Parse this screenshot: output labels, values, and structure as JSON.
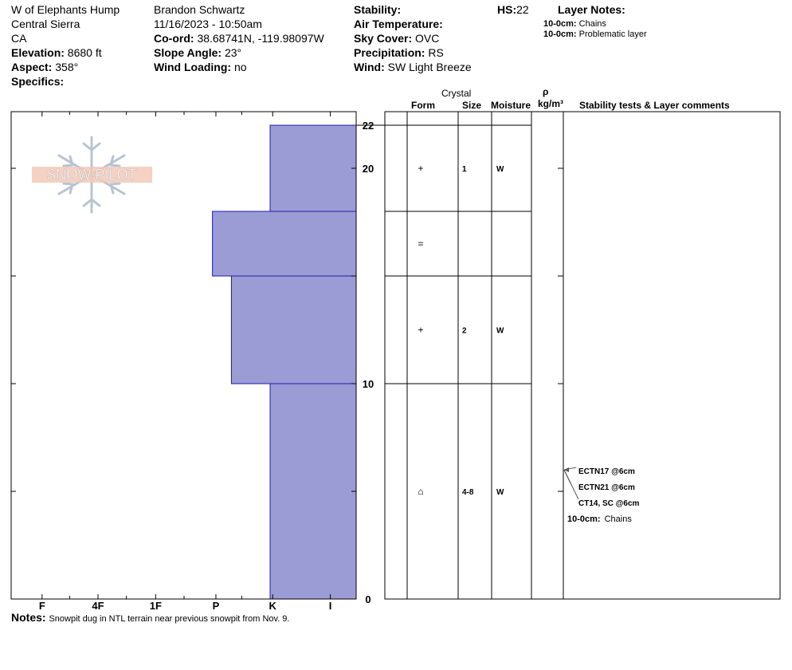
{
  "header": {
    "location": "W of Elephants Hump",
    "region": "Central Sierra",
    "state": "CA",
    "elevation": {
      "label": "Elevation:",
      "value": "8680 ft"
    },
    "aspect": {
      "label": "Aspect:",
      "value": "358°"
    },
    "specifics": {
      "label": "Specifics:",
      "value": ""
    },
    "observer": "Brandon Schwartz",
    "datetime": "11/16/2023 - 10:50am",
    "coord": {
      "label": "Co-ord:",
      "value": "38.68741N, -119.98097W"
    },
    "slope_angle": {
      "label": "Slope Angle:",
      "value": "23°"
    },
    "wind_loading": {
      "label": "Wind Loading:",
      "value": "no"
    },
    "stability": {
      "label": "Stability:",
      "value": ""
    },
    "air_temp": {
      "label": "Air Temperature:",
      "value": ""
    },
    "sky_cover": {
      "label": "Sky Cover:",
      "value": "OVC"
    },
    "precipitation": {
      "label": "Precipitation:",
      "value": "RS"
    },
    "wind": {
      "label": "Wind:",
      "value": "SW Light Breeze"
    },
    "hs": {
      "label": "HS:",
      "value": "22"
    },
    "layer_notes": {
      "title": "Layer Notes:",
      "items": [
        {
          "label": "10-0cm:",
          "text": "Chains"
        },
        {
          "label": "10-0cm:",
          "text": "Problematic layer"
        }
      ]
    }
  },
  "logo": {
    "text": "SNOW PILOT"
  },
  "columns": {
    "crystal": "Crystal",
    "form": "Form",
    "size": "Size",
    "moisture": "Moisture",
    "rho": "ρ",
    "density_unit": "kg/m³",
    "comments": "Stability tests & Layer comments"
  },
  "notes": {
    "label": "Notes:",
    "text": "Snowpit dug in NTL terrain near previous snowpit from Nov. 9."
  },
  "chart_data": {
    "type": "bar",
    "orientation": "horizontal",
    "hardness_scale": [
      "I",
      "K",
      "P",
      "1F",
      "4F",
      "F"
    ],
    "hardness_scale_positions": {
      "I": 0.3,
      "K": 0.97,
      "P": 1.63,
      "1F": 2.33,
      "4F": 3.0,
      "F": 3.65
    },
    "y_axis": {
      "range": [
        0,
        22
      ],
      "tick_labels": [
        "0",
        "10",
        "20",
        "22"
      ],
      "major_ticks": [
        0,
        5,
        10,
        15,
        20
      ]
    },
    "layers": [
      {
        "top": 22,
        "bottom": 18,
        "hardness_value": 1.0,
        "form": "+",
        "size": "1",
        "moisture": "W"
      },
      {
        "top": 18,
        "bottom": 15,
        "hardness_value": 1.67,
        "form": "=",
        "size": "",
        "moisture": ""
      },
      {
        "top": 15,
        "bottom": 10,
        "hardness_value": 1.45,
        "form": "+",
        "size": "2",
        "moisture": "W"
      },
      {
        "top": 10,
        "bottom": 0,
        "hardness_value": 1.0,
        "form": "⌂",
        "size": "4-8",
        "moisture": "W"
      }
    ],
    "stability_tests": [
      {
        "text": "ECTN17 @6cm",
        "depth": 6
      },
      {
        "text": "ECTN21 @6cm",
        "depth": 6
      },
      {
        "text": "CT14, SC @6cm",
        "depth": 6
      }
    ],
    "layer_comment": {
      "label": "10-0cm:",
      "text": "Chains"
    },
    "colors": {
      "bar_fill": "#9b9bd6",
      "bar_stroke": "#1c1ca8",
      "logo_fill": "#f2c9b8",
      "logo_icon": "#b8c4d2"
    }
  }
}
